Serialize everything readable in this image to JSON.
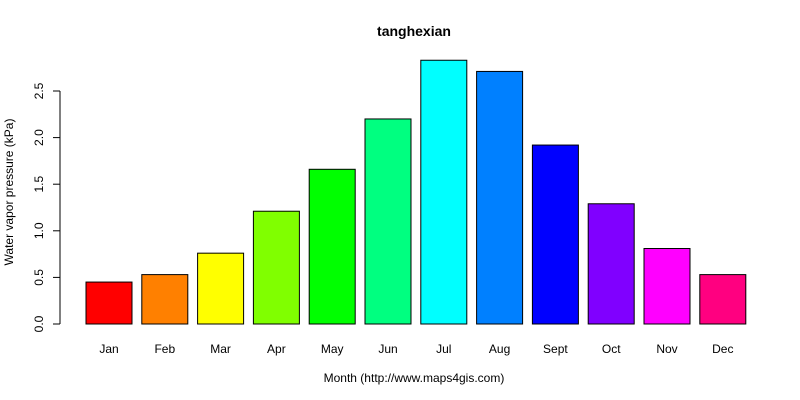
{
  "chart_data": {
    "type": "bar",
    "title": "tanghexian",
    "xlabel": "Month (http://www.maps4gis.com)",
    "ylabel": "Water vapor pressure (kPa)",
    "categories": [
      "Jan",
      "Feb",
      "Mar",
      "Apr",
      "May",
      "Jun",
      "Jul",
      "Aug",
      "Sept",
      "Oct",
      "Nov",
      "Dec"
    ],
    "values": [
      0.45,
      0.53,
      0.76,
      1.21,
      1.66,
      2.2,
      2.83,
      2.71,
      1.92,
      1.29,
      0.81,
      0.53
    ],
    "colors": [
      "#FF0000",
      "#FF8000",
      "#FFFF00",
      "#80FF00",
      "#00FF00",
      "#00FF80",
      "#00FFFF",
      "#0080FF",
      "#0000FF",
      "#8000FF",
      "#FF00FF",
      "#FF0080"
    ],
    "yticks": [
      0.0,
      0.5,
      1.0,
      1.5,
      2.0,
      2.5
    ],
    "ytick_labels": [
      "0.0",
      "0.5",
      "1.0",
      "1.5",
      "2.0",
      "2.5"
    ],
    "ylim": [
      0,
      2.85
    ],
    "grid": false,
    "legend": "none"
  }
}
